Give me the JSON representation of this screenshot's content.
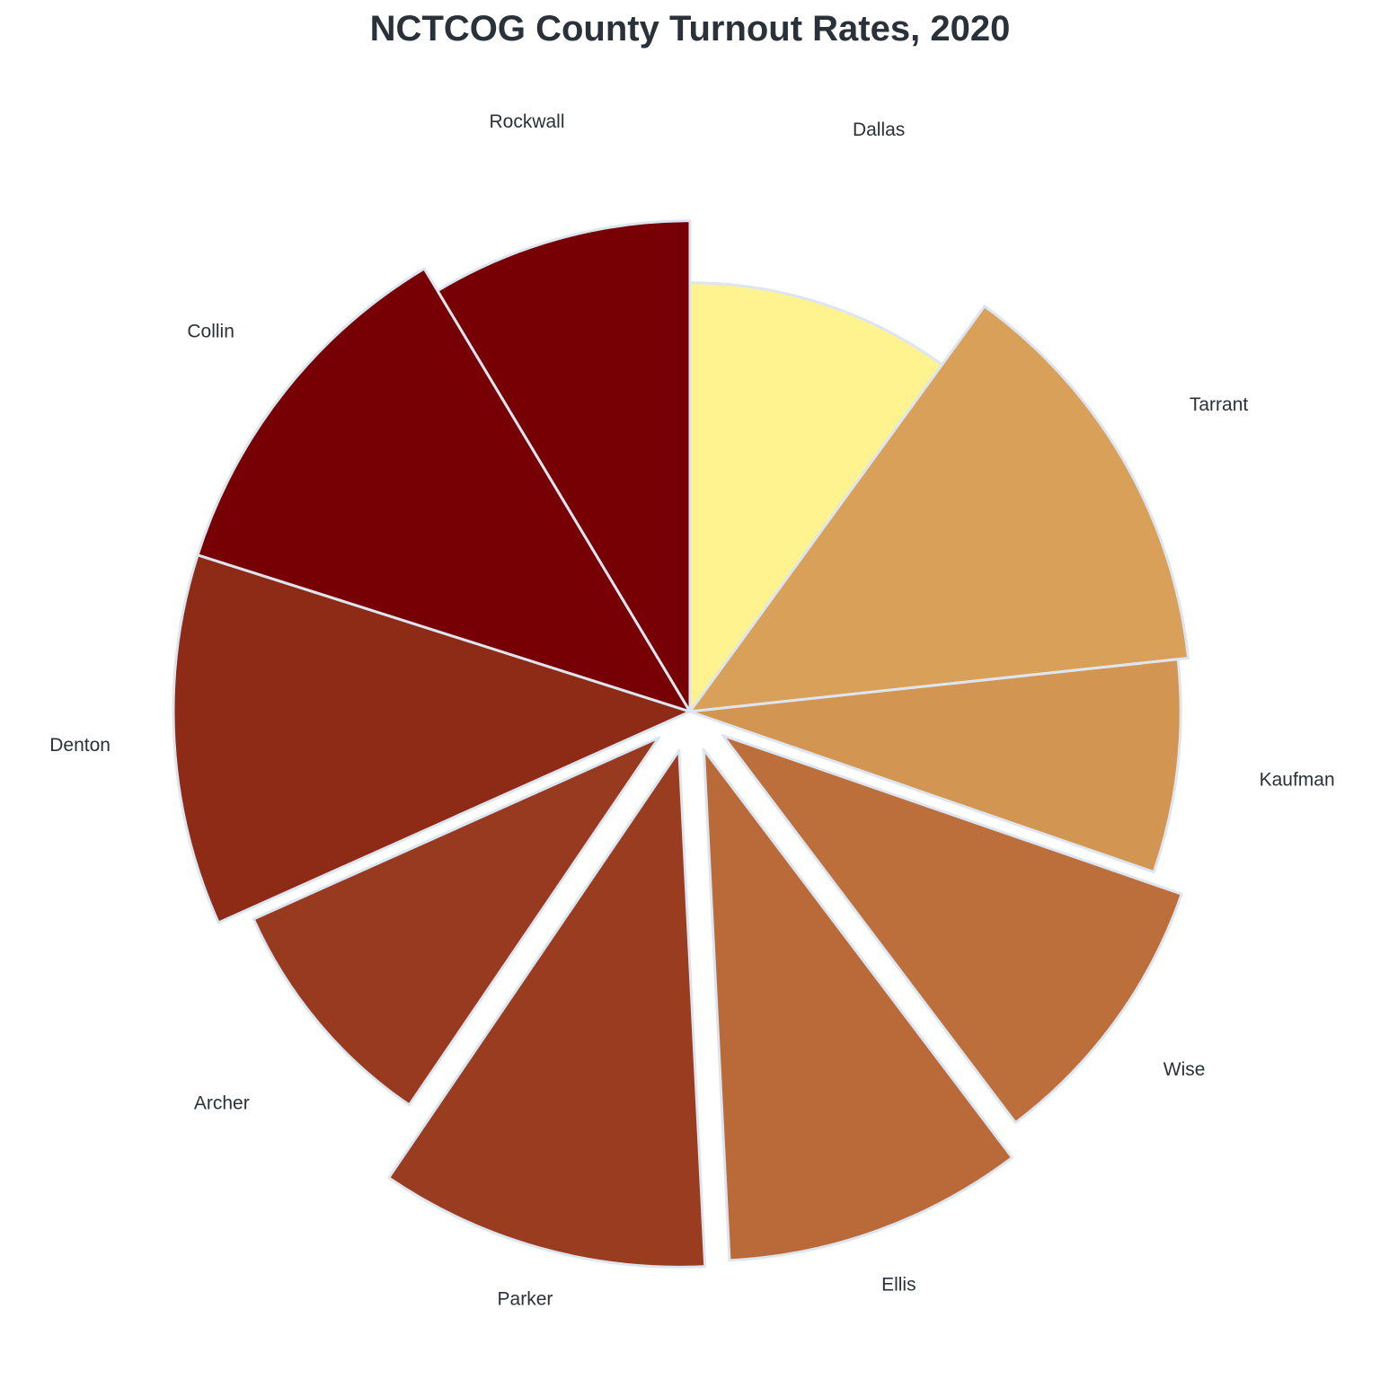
{
  "chart_data": {
    "type": "pie",
    "title": "NCTCOG County Turnout Rates, 2020",
    "categories": [
      "Dallas",
      "Tarrant",
      "Kaufman",
      "Wise",
      "Ellis",
      "Parker",
      "Archer",
      "Denton",
      "Collin",
      "Rockwall"
    ],
    "values": [
      10,
      13.3,
      7,
      9.4,
      9.5,
      10.3,
      8.8,
      11.6,
      11.5,
      8.6
    ],
    "radii": [
      0.83,
      0.97,
      0.95,
      0.94,
      0.99,
      1.0,
      0.86,
      1.0,
      1.0,
      0.95
    ],
    "exploded": [
      false,
      false,
      false,
      true,
      true,
      true,
      true,
      false,
      false,
      false
    ],
    "colors": [
      "#fff38f",
      "#d9a05a",
      "#d39552",
      "#bc6f3a",
      "#b96a38",
      "#9a3c20",
      "#983a20",
      "#8d2b16",
      "#770005",
      "#770005"
    ],
    "edge_color": "#dde6f0",
    "start_angle_deg": 90,
    "direction": "clockwise"
  }
}
